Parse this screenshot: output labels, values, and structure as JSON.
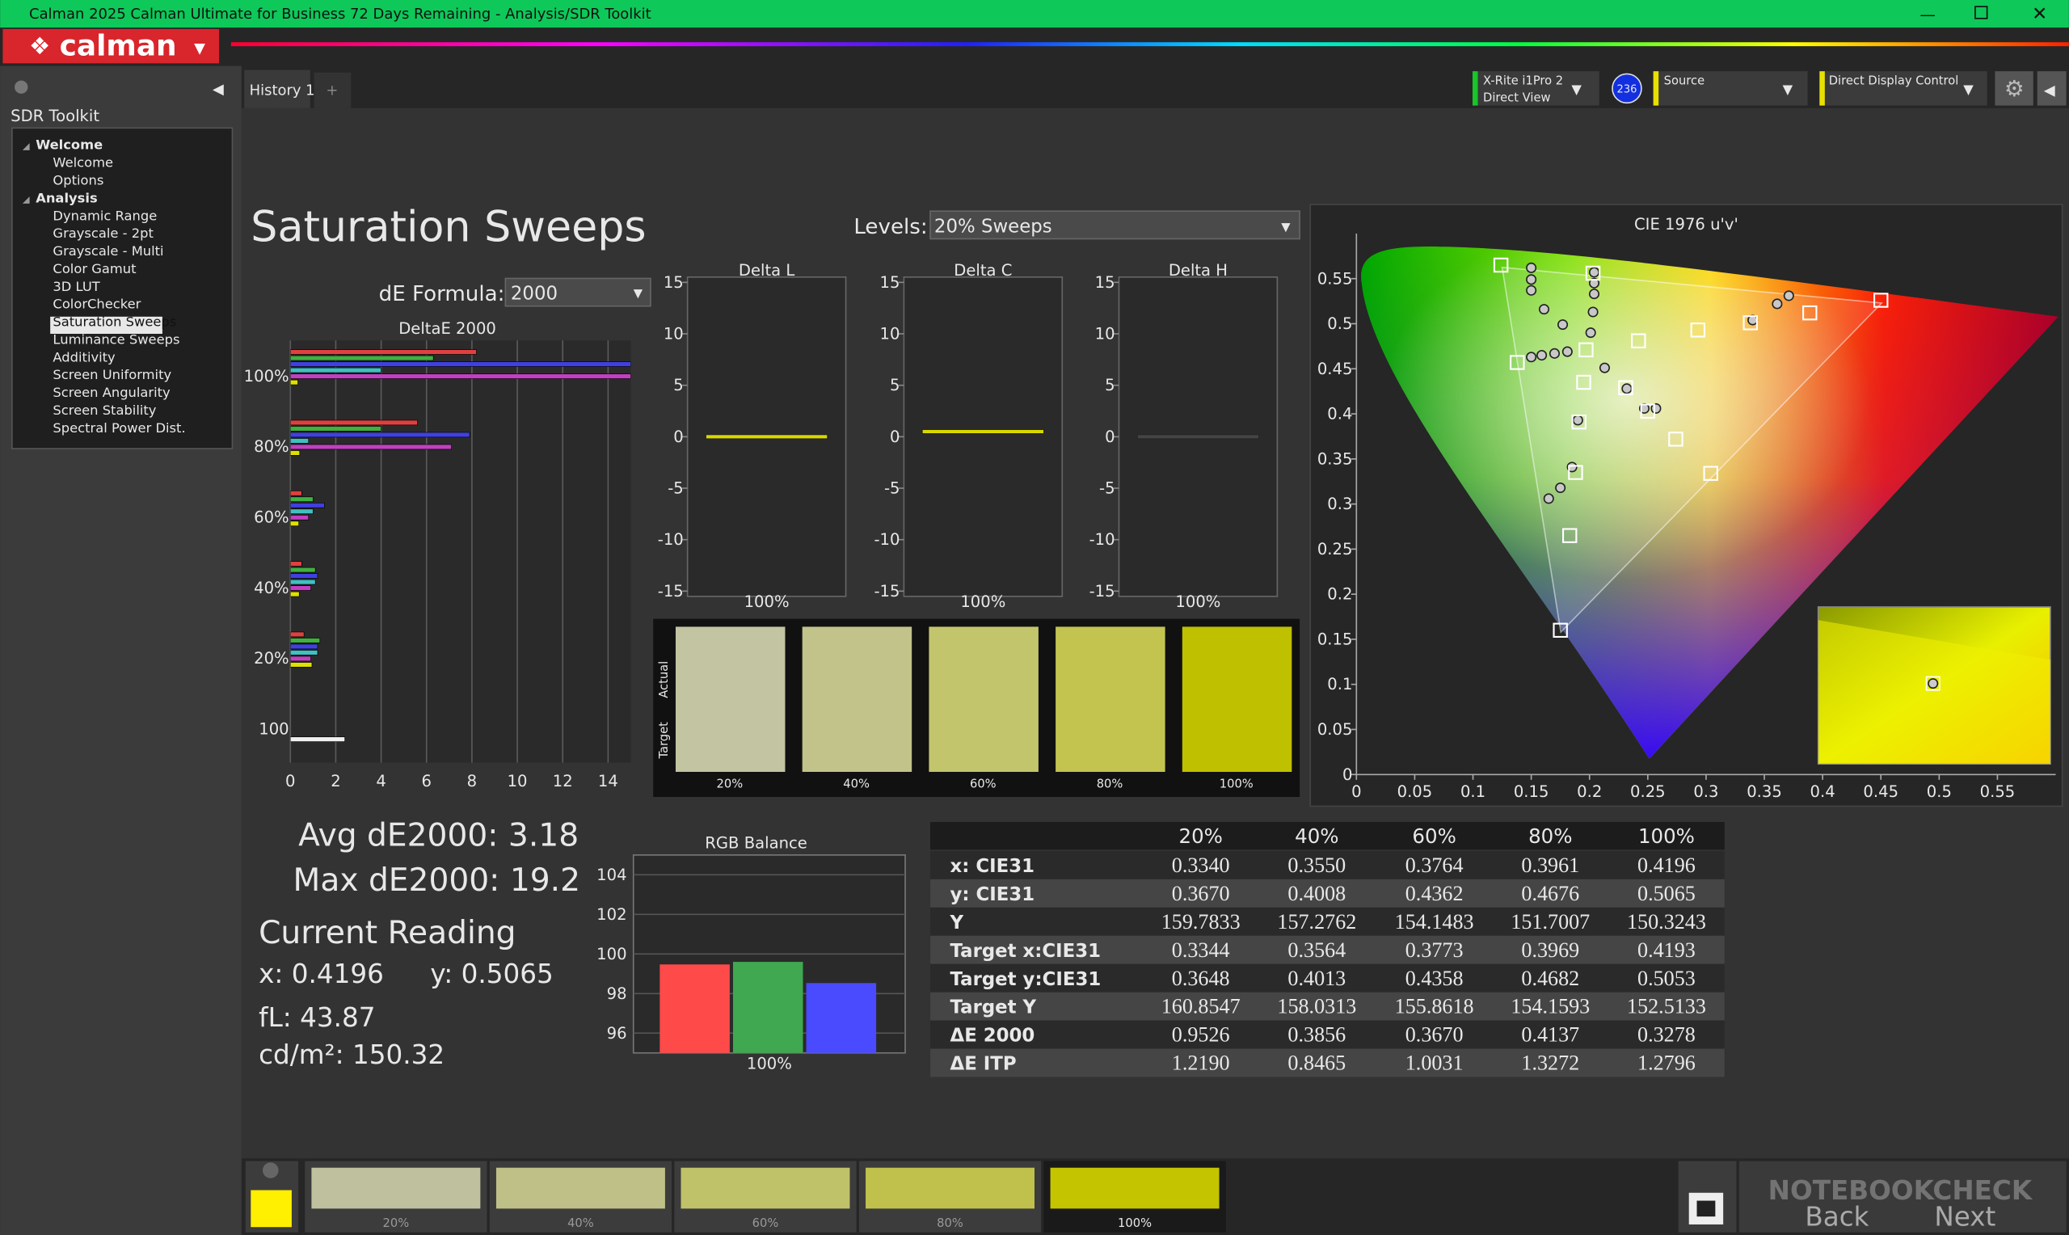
{
  "window": {
    "title": "Calman 2025 Calman Ultimate for Business 72 Days Remaining  - Analysis/SDR Toolkit",
    "logo": "calman"
  },
  "sidebar": {
    "title": "SDR Toolkit",
    "tree": [
      {
        "label": "Welcome",
        "children": [
          "Welcome",
          "Options"
        ]
      },
      {
        "label": "Analysis",
        "children": [
          "Dynamic Range",
          "Grayscale - 2pt",
          "Grayscale - Multi",
          "Color Gamut",
          "3D LUT",
          "ColorChecker",
          "Saturation Sweeps",
          "Luminance Sweeps",
          "Additivity",
          "Screen Uniformity",
          "Screen Angularity",
          "Screen Stability",
          "Spectral Power Dist."
        ]
      }
    ]
  },
  "tabs": [
    "History 1"
  ],
  "toolbar": {
    "meter": "X-Rite i1Pro 2",
    "meter_mode": "Direct View",
    "badge": "236",
    "source": "Source",
    "display": "Direct Display Control"
  },
  "page": {
    "title": "Saturation Sweeps",
    "levels_label": "Levels:",
    "levels_value": "20% Sweeps",
    "formula_label": "dE Formula:",
    "formula_value": "2000"
  },
  "deltae_chart": {
    "type": "bar",
    "orientation": "horizontal",
    "title": "DeltaE 2000",
    "categories": [
      "100%",
      "80%",
      "60%",
      "40%",
      "20%",
      "100"
    ],
    "xlim": [
      0,
      15
    ],
    "xticks": [
      0,
      2,
      4,
      6,
      8,
      10,
      12,
      14
    ],
    "grid": true,
    "series": [
      {
        "color": "#e04040",
        "values": [
          8.2,
          5.6,
          0.5,
          0.5,
          0.6,
          null
        ]
      },
      {
        "color": "#40b040",
        "values": [
          6.3,
          4.0,
          1.0,
          1.1,
          1.3,
          null
        ]
      },
      {
        "color": "#4040e0",
        "values": [
          15,
          7.9,
          1.5,
          1.2,
          1.2,
          null
        ]
      },
      {
        "color": "#40c0c0",
        "values": [
          4.0,
          0.8,
          1.0,
          1.1,
          1.2,
          null
        ]
      },
      {
        "color": "#c040c0",
        "values": [
          15,
          7.1,
          0.8,
          0.9,
          0.9,
          null
        ]
      },
      {
        "color": "#e0e000",
        "values": [
          0.33,
          0.41,
          0.37,
          0.39,
          0.95,
          null
        ]
      },
      {
        "color": "#f0f0f0",
        "values": [
          null,
          null,
          null,
          null,
          null,
          2.4
        ]
      }
    ]
  },
  "delta_charts": {
    "type": "line",
    "ylim": [
      -15,
      15
    ],
    "yticks": [
      15,
      10,
      5,
      0,
      -5,
      -10,
      -15
    ],
    "charts": [
      {
        "title": "Delta L",
        "category": "100%",
        "value": 0,
        "color": "#d8d800"
      },
      {
        "title": "Delta C",
        "category": "100%",
        "value": 0.5,
        "color": "#d8d800"
      },
      {
        "title": "Delta H",
        "category": "100%",
        "value": 0,
        "color": "#444444"
      }
    ]
  },
  "swatches": {
    "actual_label": "Actual",
    "target_label": "Target",
    "labels": [
      "20%",
      "40%",
      "60%",
      "80%",
      "100%"
    ],
    "colors": [
      "#c2c4a2",
      "#c2c38a",
      "#c3c56c",
      "#c2c44f",
      "#bfc000"
    ]
  },
  "cie_chart": {
    "type": "scatter",
    "title": "CIE 1976 u'v'",
    "xlim": [
      0,
      0.6
    ],
    "ylim": [
      0,
      0.6
    ],
    "xticks": [
      0,
      0.05,
      0.1,
      0.15,
      0.2,
      0.25,
      0.3,
      0.35,
      0.4,
      0.45,
      0.5,
      0.55
    ],
    "yticks": [
      0,
      0.05,
      0.1,
      0.15,
      0.2,
      0.25,
      0.3,
      0.35,
      0.4,
      0.45,
      0.5,
      0.55
    ],
    "gamut": {
      "color": "#ffffff",
      "u": [
        0.4507,
        0.125,
        0.1754
      ],
      "v": [
        0.5229,
        0.5625,
        0.1579
      ]
    },
    "targets": {
      "color": "#ffffff",
      "x": [
        0.124,
        0.138,
        0.175,
        0.183,
        0.188,
        0.191,
        0.195,
        0.197,
        0.203,
        0.242,
        0.293,
        0.338,
        0.389,
        0.45,
        0.274,
        0.304,
        0.231,
        0.25
      ],
      "y": [
        0.565,
        0.457,
        0.16,
        0.265,
        0.335,
        0.391,
        0.435,
        0.471,
        0.556,
        0.481,
        0.493,
        0.501,
        0.512,
        0.526,
        0.372,
        0.334,
        0.429,
        0.403
      ]
    },
    "measured": {
      "color": "#c8c8c8",
      "x": [
        0.15,
        0.15,
        0.15,
        0.161,
        0.177,
        0.204,
        0.204,
        0.204,
        0.203,
        0.201,
        0.15,
        0.159,
        0.17,
        0.181,
        0.213,
        0.232,
        0.247,
        0.257,
        0.34,
        0.361,
        0.371,
        0.19,
        0.185,
        0.175,
        0.165
      ],
      "y": [
        0.562,
        0.549,
        0.537,
        0.516,
        0.499,
        0.557,
        0.545,
        0.533,
        0.513,
        0.49,
        0.463,
        0.465,
        0.467,
        0.469,
        0.451,
        0.428,
        0.406,
        0.406,
        0.504,
        0.522,
        0.531,
        0.393,
        0.341,
        0.318,
        0.306
      ]
    }
  },
  "summary": {
    "avg": "Avg dE2000: 3.18",
    "max": "Max dE2000: 19.2",
    "reading_title": "Current Reading",
    "x": "x: 0.4196",
    "y": "y: 0.5065",
    "fl": "fL: 43.87",
    "cdm2": "cd/m²: 150.32"
  },
  "rgb_chart": {
    "type": "bar",
    "title": "RGB Balance",
    "categories": [
      "100%"
    ],
    "ylim": [
      95,
      105
    ],
    "yticks": [
      96,
      98,
      100,
      102,
      104
    ],
    "series": [
      {
        "color": "#ff4a4a",
        "values": [
          99.47
        ]
      },
      {
        "color": "#40a850",
        "values": [
          99.6
        ]
      },
      {
        "color": "#4a4aff",
        "values": [
          98.53
        ]
      }
    ]
  },
  "table": {
    "header": [
      "20%",
      "40%",
      "60%",
      "80%",
      "100%"
    ],
    "rows": [
      {
        "label": "x: CIE31",
        "values": [
          "0.3340",
          "0.3550",
          "0.3764",
          "0.3961",
          "0.4196"
        ]
      },
      {
        "label": "y: CIE31",
        "values": [
          "0.3670",
          "0.4008",
          "0.4362",
          "0.4676",
          "0.5065"
        ]
      },
      {
        "label": "Y",
        "values": [
          "159.7833",
          "157.2762",
          "154.1483",
          "151.7007",
          "150.3243"
        ]
      },
      {
        "label": "Target x:CIE31",
        "values": [
          "0.3344",
          "0.3564",
          "0.3773",
          "0.3969",
          "0.4193"
        ]
      },
      {
        "label": "Target y:CIE31",
        "values": [
          "0.3648",
          "0.4013",
          "0.4358",
          "0.4682",
          "0.5053"
        ]
      },
      {
        "label": "Target Y",
        "values": [
          "160.8547",
          "158.0313",
          "155.8618",
          "154.1593",
          "152.5133"
        ]
      },
      {
        "label": "ΔE 2000",
        "values": [
          "0.9526",
          "0.3856",
          "0.3670",
          "0.4137",
          "0.3278"
        ]
      },
      {
        "label": "ΔE ITP",
        "values": [
          "1.2190",
          "0.8465",
          "1.0031",
          "1.3272",
          "1.2796"
        ]
      }
    ]
  },
  "bottom_swatches": {
    "labels": [
      "20%",
      "40%",
      "60%",
      "80%",
      "100%"
    ],
    "colors": [
      "#bfc09e",
      "#bfc087",
      "#c0c26a",
      "#bfc14c",
      "#c4c400"
    ]
  },
  "navigation": {
    "back": "Back",
    "next": "Next"
  },
  "watermark": "NOTEBOOKCHECK"
}
